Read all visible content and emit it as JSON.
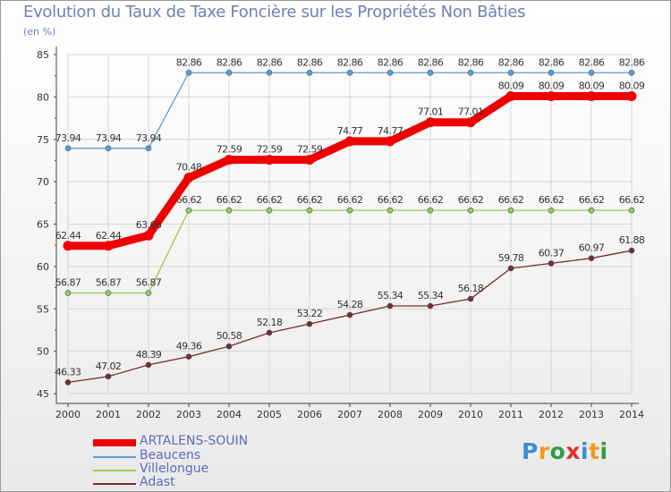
{
  "title": "Evolution du Taux de Taxe Foncière sur les Propriétés Non Bâties",
  "subtitle": "(en %)",
  "logo": {
    "text": "Proxiti",
    "colors": [
      "#3b8bd8",
      "#f29a1a",
      "#2f9e44",
      "#e0302b",
      "#3b8bd8",
      "#f29a1a",
      "#2f9e44"
    ]
  },
  "chart_data": {
    "type": "line",
    "title": "Evolution du Taux de Taxe Foncière sur les Propriétés Non Bâties",
    "ylabel": "(en %)",
    "xlabel": "",
    "x": [
      "2000",
      "2001",
      "2002",
      "2003",
      "2004",
      "2005",
      "2006",
      "2007",
      "2008",
      "2009",
      "2010",
      "2011",
      "2012",
      "2013",
      "2014"
    ],
    "ylim": [
      45,
      85
    ],
    "yticks": [
      45,
      50,
      55,
      60,
      65,
      70,
      75,
      80,
      85
    ],
    "grid": true,
    "legend": "bottom-left",
    "series": [
      {
        "name": "ARTALENS-SOUIN",
        "color": "#ee0000",
        "width": 9,
        "values": [
          62.44,
          62.44,
          63.66,
          70.48,
          72.59,
          72.59,
          72.59,
          74.77,
          74.77,
          77.01,
          77.01,
          80.09,
          80.09,
          80.09,
          80.09
        ],
        "labels": [
          "62.44",
          "62.44",
          "63.66",
          "70.48",
          "72.59",
          "72.59",
          "72.59",
          "74.77",
          "74.77",
          "77.01",
          "77.01",
          "80.09",
          "80.09",
          "80.09",
          "80.09"
        ]
      },
      {
        "name": "Beaucens",
        "color": "#5d9fd3",
        "width": 1.3,
        "values": [
          73.94,
          73.94,
          73.94,
          82.86,
          82.86,
          82.86,
          82.86,
          82.86,
          82.86,
          82.86,
          82.86,
          82.86,
          82.86,
          82.86,
          82.86
        ],
        "labels": [
          "73.94",
          "73.94",
          "73.94",
          "82.86",
          "82.86",
          "82.86",
          "82.86",
          "82.86",
          "82.86",
          "82.86",
          "82.86",
          "82.86",
          "82.86",
          "82.86",
          "82.86"
        ]
      },
      {
        "name": "Villelongue",
        "color": "#9acd52",
        "width": 1.3,
        "values": [
          56.87,
          56.87,
          56.87,
          66.62,
          66.62,
          66.62,
          66.62,
          66.62,
          66.62,
          66.62,
          66.62,
          66.62,
          66.62,
          66.62,
          66.62
        ],
        "labels": [
          "56.87",
          "56.87",
          "56.87",
          "66.62",
          "66.62",
          "66.62",
          "66.62",
          "66.62",
          "66.62",
          "66.62",
          "66.62",
          "66.62",
          "66.62",
          "66.62",
          "66.62"
        ]
      },
      {
        "name": "Adast",
        "color": "#7a2b2b",
        "width": 1.3,
        "values": [
          46.33,
          47.02,
          48.39,
          49.36,
          50.58,
          52.18,
          53.22,
          54.28,
          55.34,
          55.34,
          56.18,
          59.78,
          60.37,
          60.97,
          61.88
        ],
        "labels": [
          "46.33",
          "47.02",
          "48.39",
          "49.36",
          "50.58",
          "52.18",
          "53.22",
          "54.28",
          "55.34",
          "55.34",
          "56.18",
          "59.78",
          "60.37",
          "60.97",
          "61.88"
        ]
      }
    ]
  }
}
